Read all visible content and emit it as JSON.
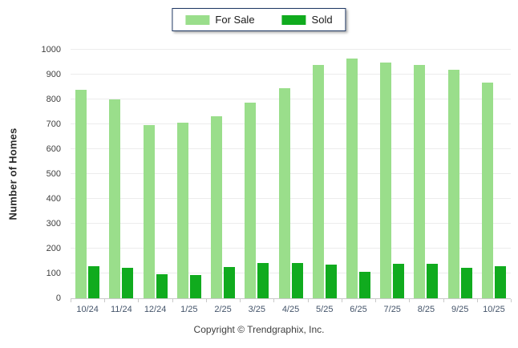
{
  "legend": {
    "items": [
      {
        "label": "For Sale",
        "color": "#9ADE8B"
      },
      {
        "label": "Sold",
        "color": "#10AB1E"
      }
    ]
  },
  "footer": {
    "copyright": "Copyright © Trendgraphix, Inc."
  },
  "colors": {
    "for_sale": "#9ADE8B",
    "sold": "#10AB1E",
    "gridline": "#ECECEC",
    "axis_line": "#C9C9C9",
    "x_label": "#44546A",
    "y_label": "#3F3F3F",
    "legend_border": "#1F3864"
  },
  "chart_data": {
    "type": "bar",
    "title": "",
    "xlabel": "",
    "ylabel": "Number of Homes",
    "ylim": [
      0,
      1000
    ],
    "ytick_step": 100,
    "grid": true,
    "legend_position": "top-center",
    "categories": [
      "10/24",
      "11/24",
      "12/24",
      "1/25",
      "2/25",
      "3/25",
      "4/25",
      "5/25",
      "6/25",
      "7/25",
      "8/25",
      "9/25",
      "10/25"
    ],
    "series": [
      {
        "name": "For Sale",
        "color": "#9ADE8B",
        "values": [
          840,
          800,
          696,
          707,
          733,
          788,
          845,
          940,
          965,
          950,
          940,
          920,
          868
        ]
      },
      {
        "name": "Sold",
        "color": "#10AB1E",
        "values": [
          130,
          122,
          98,
          95,
          127,
          141,
          143,
          135,
          108,
          140,
          140,
          124,
          128
        ]
      }
    ]
  }
}
